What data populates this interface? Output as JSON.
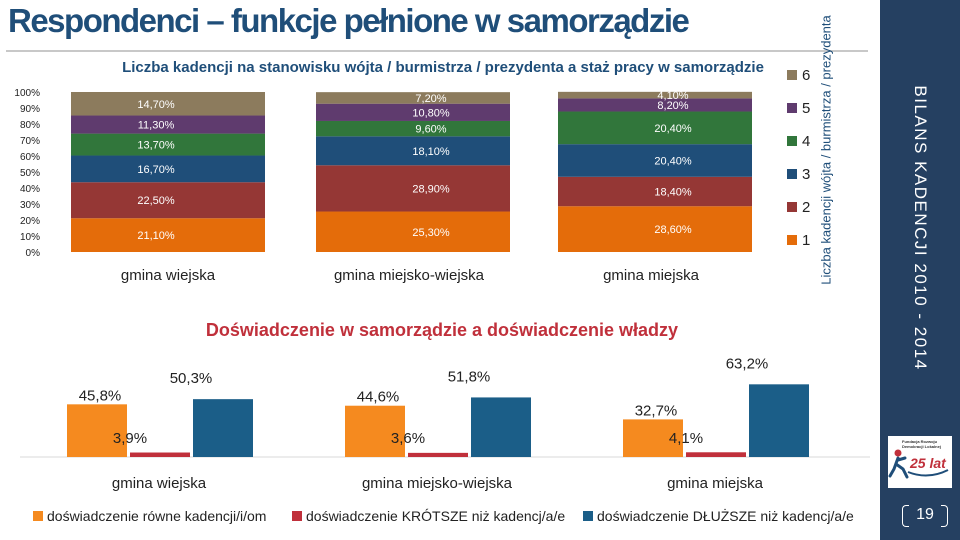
{
  "slide": {
    "title": "Respondenci – funkcje pełnione w samorządzie",
    "sidebar_text": "BILANS KADENCJI  2010 - 2014",
    "page_number": "19",
    "logo_text": "Fundacja Rozwoju Demokracji Lokalnej",
    "logo_mark": "25 lat"
  },
  "chart_data": [
    {
      "type": "bar",
      "stacked": true,
      "title": "Liczba kadencji na stanowisku wójta / burmistrza / prezydenta a staż pracy w samorządzie",
      "categories": [
        "gmina wiejska",
        "gmina miejsko-wiejska",
        "gmina miejska"
      ],
      "ylim": [
        0,
        100
      ],
      "yticks": [
        "0%",
        "10%",
        "20%",
        "30%",
        "40%",
        "50%",
        "60%",
        "70%",
        "80%",
        "90%",
        "100%"
      ],
      "legend_title": "Liczba kadencji wójta / burmistrza / prezydenta",
      "legend_placement": "right",
      "series": [
        {
          "name": "1",
          "color": "#e46c0a",
          "values": [
            21.1,
            25.3,
            28.6
          ],
          "labels": [
            "21,10%",
            "25,30%",
            "28,60%"
          ]
        },
        {
          "name": "2",
          "color": "#953735",
          "values": [
            22.5,
            28.9,
            18.4
          ],
          "labels": [
            "22,50%",
            "28,90%",
            "18,40%"
          ]
        },
        {
          "name": "3",
          "color": "#1f4e79",
          "values": [
            16.7,
            18.1,
            20.4
          ],
          "labels": [
            "16,70%",
            "18,10%",
            "20,40%"
          ]
        },
        {
          "name": "4",
          "color": "#31763b",
          "values": [
            13.7,
            9.6,
            20.4
          ],
          "labels": [
            "13,70%",
            "9,60%",
            "20,40%"
          ]
        },
        {
          "name": "5",
          "color": "#5f3b6e",
          "values": [
            11.3,
            10.8,
            8.2
          ],
          "labels": [
            "11,30%",
            "10,80%",
            "8,20%"
          ]
        },
        {
          "name": "6",
          "color": "#8c7b5d",
          "values": [
            14.7,
            7.2,
            4.1
          ],
          "labels": [
            "14,70%",
            "7,20%",
            "4,10%"
          ]
        }
      ]
    },
    {
      "type": "bar",
      "title": "Doświadczenie w samorządzie a doświadczenie władzy",
      "categories": [
        "gmina wiejska",
        "gmina miejsko-wiejska",
        "gmina miejska"
      ],
      "ylim": [
        0,
        70
      ],
      "legend_placement": "bottom",
      "series": [
        {
          "name": "doświadczenie równe kadencji/i/om",
          "color": "#f58a1f",
          "values": [
            45.8,
            44.6,
            32.7
          ],
          "labels": [
            "45,8%",
            "44,6%",
            "32,7%"
          ]
        },
        {
          "name": "doświadczenie KRÓTSZE niż kadencj/a/e",
          "color": "#c0303b",
          "values": [
            3.9,
            3.6,
            4.1
          ],
          "labels": [
            "3,9%",
            "3,6%",
            "4,1%"
          ]
        },
        {
          "name": "doświadczenie DŁUŻSZE niż kadencj/a/e",
          "color": "#1b5e88",
          "values": [
            50.3,
            51.8,
            63.2
          ],
          "labels": [
            "50,3%",
            "51,8%",
            "63,2%"
          ]
        }
      ]
    }
  ]
}
